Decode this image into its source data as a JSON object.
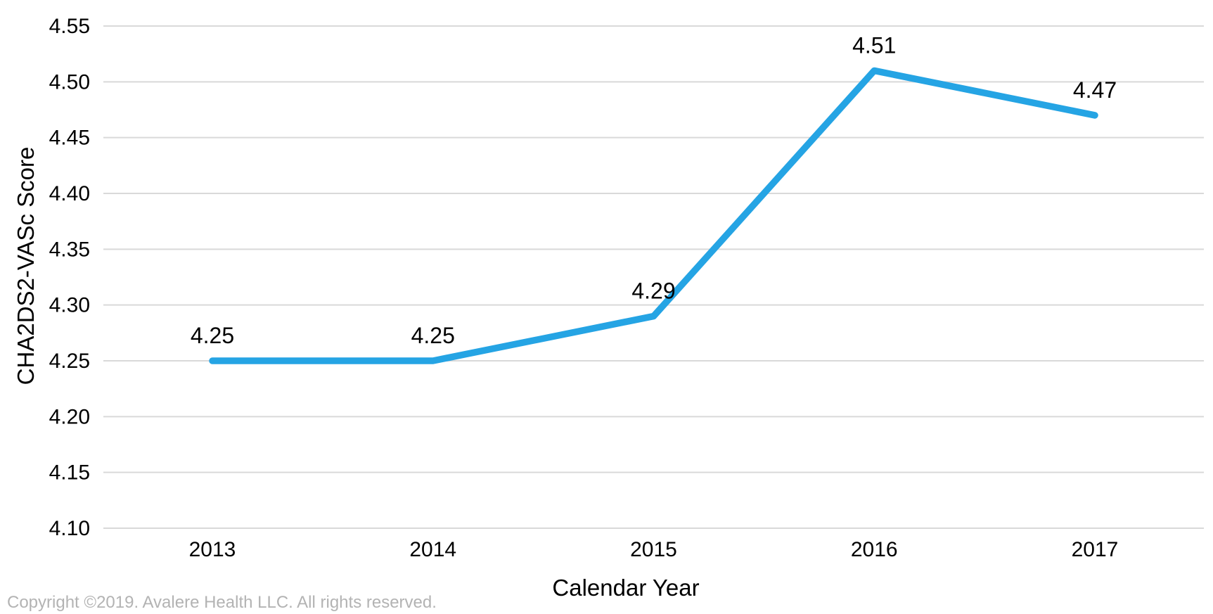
{
  "chart_data": {
    "type": "line",
    "x": [
      2013,
      2014,
      2015,
      2016,
      2017
    ],
    "series": [
      {
        "name": "CHA2DS2-VASc Score",
        "values": [
          4.25,
          4.25,
          4.29,
          4.51,
          4.47
        ]
      }
    ],
    "point_labels": [
      "4.25",
      "4.25",
      "4.29",
      "4.51",
      "4.47"
    ],
    "xlabel": "Calendar Year",
    "ylabel": "CHA2DS2-VASc Score",
    "ylim": [
      4.1,
      4.55
    ],
    "ytick_step": 0.05,
    "ytick_decimals": 2,
    "grid": true,
    "legend_position": "none",
    "line_color": "#25A4E4",
    "gridline_color": "#D9D9D9",
    "text_color": "#000000"
  },
  "footer": {
    "copyright": "Copyright ©2019. Avalere Health LLC. All rights reserved.",
    "copyright_color": "#B3B3B3"
  }
}
